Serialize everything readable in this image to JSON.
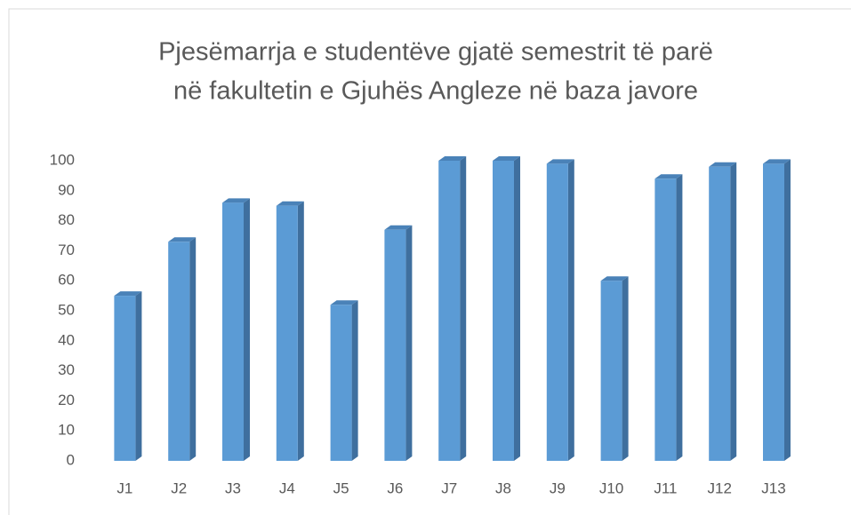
{
  "chart_data": {
    "type": "bar3d",
    "title": [
      "Pjesëmarrja e studentëve gjatë semestrit të parë",
      "në fakultetin e Gjuhës Angleze në baza javore"
    ],
    "categories": [
      "J1",
      "J2",
      "J3",
      "J4",
      "J5",
      "J6",
      "J7",
      "J8",
      "J9",
      "J10",
      "J11",
      "J12",
      "J13"
    ],
    "values": [
      55,
      73,
      86,
      85,
      52,
      77,
      100,
      100,
      99,
      60,
      94,
      98,
      99
    ],
    "color": "#5b9bd5",
    "ylim": [
      0,
      100
    ],
    "yticks": [
      0,
      10,
      20,
      30,
      40,
      50,
      60,
      70,
      80,
      90,
      100
    ],
    "grid": false
  }
}
